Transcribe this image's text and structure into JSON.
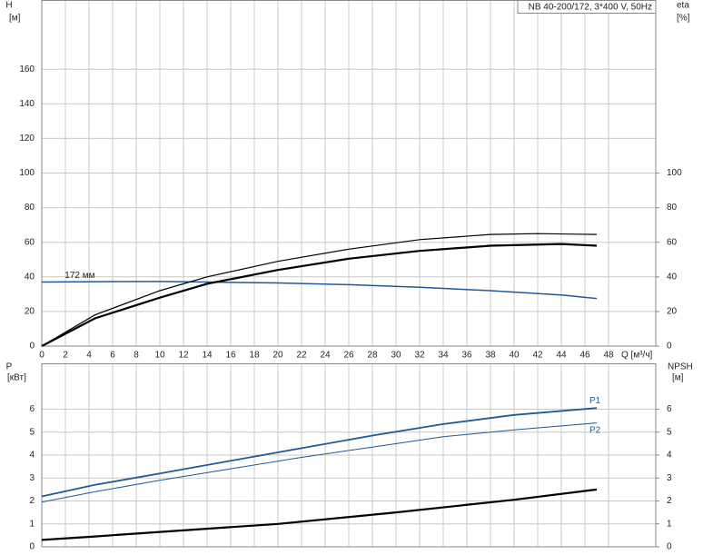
{
  "chart_data": [
    {
      "type": "line",
      "title": "NB 40-200/172, 3*400 V, 50Hz",
      "ylabel": "H",
      "yunit": "[м]",
      "y2label": "eta",
      "y2unit": "[%]",
      "xlabel": "Q [м³/ч]",
      "xlim": [
        0,
        52
      ],
      "xticks": [
        0,
        2,
        4,
        6,
        8,
        10,
        12,
        14,
        16,
        18,
        20,
        22,
        24,
        26,
        28,
        30,
        32,
        34,
        36,
        38,
        40,
        42,
        44,
        46,
        48
      ],
      "ylim": [
        0,
        200
      ],
      "yticks": [
        0,
        20,
        40,
        60,
        80,
        100,
        120,
        140,
        160
      ],
      "y2lim": [
        0,
        200
      ],
      "y2ticks": [
        0,
        20,
        40,
        60,
        80,
        100
      ],
      "grid": true,
      "series": [
        {
          "color": "#1f5a96",
          "width": 1.5,
          "x": [
            0,
            4.5,
            10,
            14,
            20,
            26,
            32,
            38,
            44,
            47
          ],
          "values": [
            37,
            37.2,
            37.3,
            37,
            36.5,
            35.5,
            34,
            32,
            29.5,
            27.5
          ]
        },
        {
          "color": "#000000",
          "width": 2.2,
          "axis": "y2",
          "x": [
            0,
            4.5,
            10,
            14,
            20,
            26,
            32,
            38,
            44,
            47
          ],
          "values": [
            0,
            16,
            28,
            36,
            44,
            50.5,
            55,
            58,
            59,
            58
          ]
        },
        {
          "color": "#000000",
          "width": 1.2,
          "axis": "y2",
          "x": [
            0,
            4.5,
            10,
            14,
            20,
            26,
            32,
            38,
            42,
            47
          ],
          "values": [
            0,
            18,
            32,
            40,
            49,
            56,
            61.5,
            64.5,
            65,
            64.5
          ]
        }
      ],
      "annotations": [
        {
          "text": "172 мм",
          "x": 4.5,
          "y": 37
        }
      ]
    },
    {
      "type": "line",
      "ylabel": "P",
      "yunit": "[кВт]",
      "y2label": "NPSH",
      "y2unit": "[м]",
      "xlim": [
        0,
        52
      ],
      "xticks": [
        0,
        2,
        4,
        6,
        8,
        10,
        12,
        14,
        16,
        18,
        20,
        22,
        24,
        26,
        28,
        30,
        32,
        34,
        36,
        38,
        40,
        42,
        44,
        46,
        48
      ],
      "ylim": [
        0,
        8
      ],
      "yticks": [
        0,
        1,
        2,
        3,
        4,
        5,
        6
      ],
      "y2lim": [
        0,
        8
      ],
      "y2ticks": [
        0,
        1,
        2,
        3,
        4,
        5,
        6
      ],
      "grid": true,
      "series": [
        {
          "name": "P1",
          "color": "#1f5a96",
          "width": 1.8,
          "x": [
            0,
            4.5,
            10,
            16,
            22,
            28,
            34,
            40,
            47
          ],
          "values": [
            2.2,
            2.7,
            3.2,
            3.75,
            4.3,
            4.85,
            5.35,
            5.75,
            6.05
          ]
        },
        {
          "name": "P2",
          "color": "#1f5a96",
          "width": 1,
          "x": [
            0,
            4.5,
            10,
            16,
            22,
            28,
            34,
            40,
            47
          ],
          "values": [
            1.95,
            2.4,
            2.9,
            3.4,
            3.9,
            4.35,
            4.8,
            5.1,
            5.4
          ]
        },
        {
          "color": "#000000",
          "width": 2.2,
          "axis": "y2",
          "x": [
            0,
            4.5,
            10,
            20,
            30,
            40,
            47
          ],
          "values": [
            0.3,
            0.45,
            0.65,
            1.0,
            1.5,
            2.05,
            2.5
          ]
        }
      ]
    }
  ]
}
